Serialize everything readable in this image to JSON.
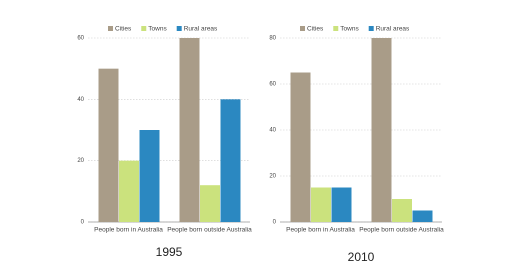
{
  "chart_data": [
    {
      "type": "bar",
      "title": "1995",
      "categories": [
        "People born in Australia",
        "People born outside Australia"
      ],
      "series": [
        {
          "name": "Cities",
          "color": "#a99c88",
          "values": [
            50,
            60
          ]
        },
        {
          "name": "Towns",
          "color": "#cbe27d",
          "values": [
            20,
            12
          ]
        },
        {
          "name": "Rural areas",
          "color": "#2b88c1",
          "values": [
            30,
            40
          ]
        }
      ],
      "ylim": [
        0,
        60
      ],
      "yticks": [
        0,
        20,
        40,
        60
      ],
      "grid": true,
      "legend": "top"
    },
    {
      "type": "bar",
      "title": "2010",
      "categories": [
        "People born in Australia",
        "People born outside Australia"
      ],
      "series": [
        {
          "name": "Cities",
          "color": "#a99c88",
          "values": [
            65,
            80
          ]
        },
        {
          "name": "Towns",
          "color": "#cbe27d",
          "values": [
            15,
            10
          ]
        },
        {
          "name": "Rural areas",
          "color": "#2b88c1",
          "values": [
            15,
            5
          ]
        }
      ],
      "ylim": [
        0,
        80
      ],
      "yticks": [
        0,
        20,
        40,
        60,
        80
      ],
      "grid": true,
      "legend": "top"
    }
  ]
}
